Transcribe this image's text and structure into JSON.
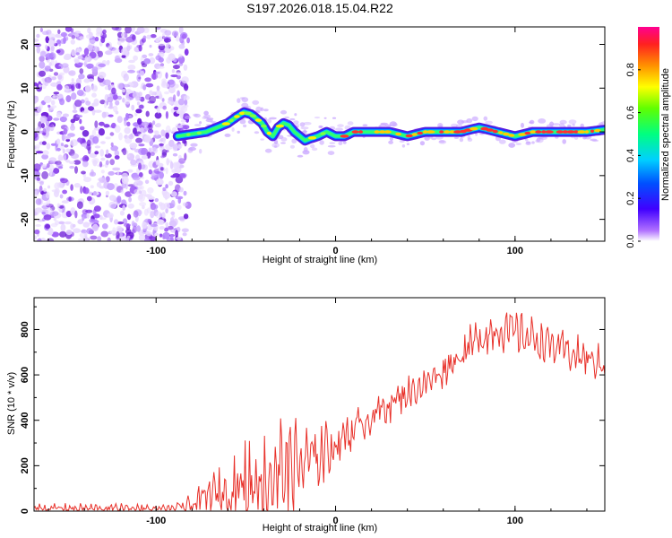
{
  "title": "S197.2026.018.15.04.R22",
  "colors": {
    "snr_line": "#e8312a",
    "noise": "#7b2fe8",
    "axis": "#000000"
  },
  "chart_data": [
    {
      "type": "heatmap",
      "name": "spectrogram",
      "xlabel": "Height of straight line (km)",
      "ylabel": "Frequency (Hz)",
      "xlim": [
        -168,
        150
      ],
      "ylim": [
        -25,
        24
      ],
      "x_ticks": [
        -100,
        0,
        100
      ],
      "x_tick_labels": [
        "-100",
        "0",
        "100"
      ],
      "y_ticks": [
        -20,
        -10,
        0,
        10,
        20
      ],
      "y_tick_labels": [
        "-20",
        "-10",
        "0",
        "10",
        "20"
      ],
      "noise_region_x": [
        -168,
        -84
      ],
      "ridge": {
        "x": [
          -88,
          -80,
          -72,
          -66,
          -60,
          -55,
          -51,
          -47,
          -44,
          -41,
          -38,
          -35,
          -32,
          -29,
          -26,
          -23,
          -20,
          -17,
          -14,
          -10,
          -5,
          0,
          5,
          10,
          20,
          30,
          40,
          50,
          60,
          70,
          80,
          90,
          100,
          110,
          120,
          130,
          140,
          150
        ],
        "freq": [
          -1,
          -0.5,
          0,
          1,
          2,
          3.5,
          4.5,
          4,
          3,
          2,
          0,
          -1,
          1,
          2,
          1.5,
          0,
          -1,
          -2,
          -1.5,
          -1,
          0,
          -1,
          -1,
          0,
          0,
          0,
          -1,
          0,
          0,
          0,
          1,
          0,
          -1,
          0,
          0,
          0,
          0,
          0.5
        ]
      },
      "colorbar": {
        "label": "Normalized spectral amplitude",
        "range": [
          0,
          1
        ],
        "ticks": [
          0.0,
          0.2,
          0.4,
          0.6,
          0.8
        ],
        "tick_labels": [
          "0.0",
          "0.2",
          "0.4",
          "0.6",
          "0.8"
        ]
      }
    },
    {
      "type": "line",
      "name": "snr",
      "xlabel": "Height of straight line (km)",
      "ylabel": "SNR (10 * v/v)",
      "xlim": [
        -168,
        150
      ],
      "ylim": [
        0,
        940
      ],
      "x_ticks": [
        -100,
        0,
        100
      ],
      "x_tick_labels": [
        "-100",
        "0",
        "100"
      ],
      "y_ticks": [
        0,
        200,
        400,
        600,
        800
      ],
      "y_tick_labels": [
        "0",
        "200",
        "400",
        "600",
        "800"
      ],
      "envelope": {
        "x": [
          -168,
          -150,
          -120,
          -90,
          -84,
          -78,
          -70,
          -60,
          -50,
          -40,
          -30,
          -20,
          -10,
          0,
          10,
          20,
          30,
          40,
          50,
          60,
          70,
          80,
          90,
          100,
          110,
          120,
          130,
          140,
          150
        ],
        "snr": [
          12,
          12,
          12,
          12,
          15,
          40,
          70,
          90,
          110,
          150,
          180,
          200,
          240,
          300,
          360,
          420,
          470,
          520,
          560,
          620,
          690,
          760,
          800,
          790,
          760,
          730,
          700,
          670,
          640
        ]
      },
      "noise_amplitude": [
        [
          -168,
          18
        ],
        [
          -90,
          18
        ],
        [
          -78,
          45
        ],
        [
          -65,
          90
        ],
        [
          -50,
          180
        ],
        [
          -35,
          240
        ],
        [
          -25,
          200
        ],
        [
          -15,
          140
        ],
        [
          0,
          110
        ],
        [
          20,
          70
        ],
        [
          50,
          60
        ],
        [
          80,
          80
        ],
        [
          100,
          80
        ],
        [
          150,
          70
        ]
      ]
    }
  ]
}
